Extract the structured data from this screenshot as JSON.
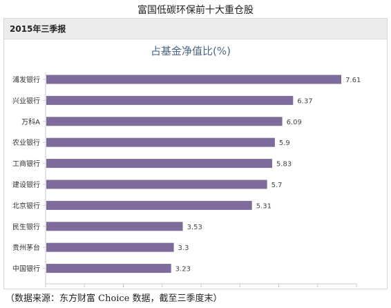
{
  "page_title": "富国低碳环保前十大重仓股",
  "panel": {
    "period_label": "2015年三季报"
  },
  "source_note": "（数据来源：东方财富 Choice 数据，截至三季度末）",
  "colors": {
    "bar": "#7e6a9b",
    "axis": "#c8c8c8",
    "text": "#333333"
  },
  "chart_data": {
    "type": "bar",
    "orientation": "horizontal",
    "title": "占基金净值比(%)",
    "categories": [
      "浦发银行",
      "兴业银行",
      "万科A",
      "农业银行",
      "工商银行",
      "建设银行",
      "北京银行",
      "民生银行",
      "贵州茅台",
      "中国银行"
    ],
    "values": [
      7.61,
      6.37,
      6.09,
      5.9,
      5.83,
      5.7,
      5.31,
      3.53,
      3.3,
      3.23
    ],
    "value_labels": [
      "7.61",
      "6.37",
      "6.09",
      "5.9",
      "5.83",
      "5.7",
      "5.31",
      "3.53",
      "3.3",
      "3.23"
    ],
    "xlim": [
      0,
      8
    ],
    "xticks": [
      "0",
      "1",
      "2",
      "3",
      "4",
      "5",
      "6",
      "7",
      "8"
    ],
    "grid": false,
    "legend": "none"
  }
}
